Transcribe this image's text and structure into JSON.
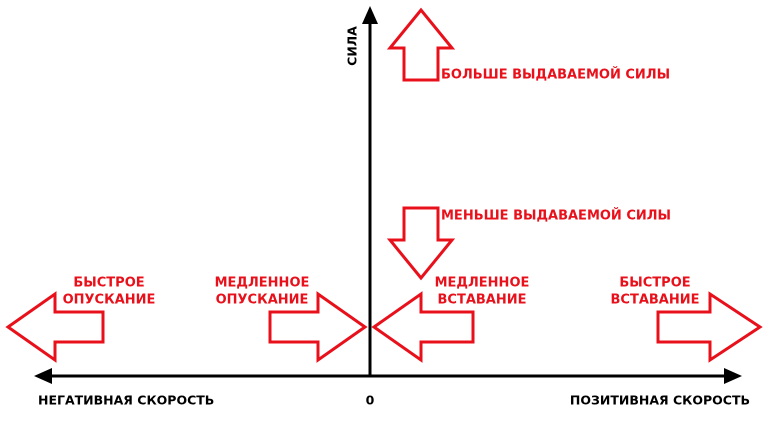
{
  "axes": {
    "y_label": "СИЛА",
    "origin_label": "0",
    "x_negative_label": "НЕГАТИВНАЯ СКОРОСТЬ",
    "x_positive_label": "ПОЗИТИВНАЯ СКОРОСТЬ"
  },
  "force_labels": [
    "БОЛЬШЕ ВЫДАВАЕМОЙ СИЛЫ",
    "МЕНЬШЕ ВЫДАВАЕМОЙ СИЛЫ"
  ],
  "speed_labels": [
    {
      "lines": [
        "БЫСТРОЕ",
        "ОПУСКАНИЕ"
      ]
    },
    {
      "lines": [
        "МЕДЛЕННОЕ",
        "ОПУСКАНИЕ"
      ]
    },
    {
      "lines": [
        "МЕДЛЕННОЕ",
        "ВСТАВАНИЕ"
      ]
    },
    {
      "lines": [
        "БЫСТРОЕ",
        "ВСТАВАНИЕ"
      ]
    }
  ]
}
